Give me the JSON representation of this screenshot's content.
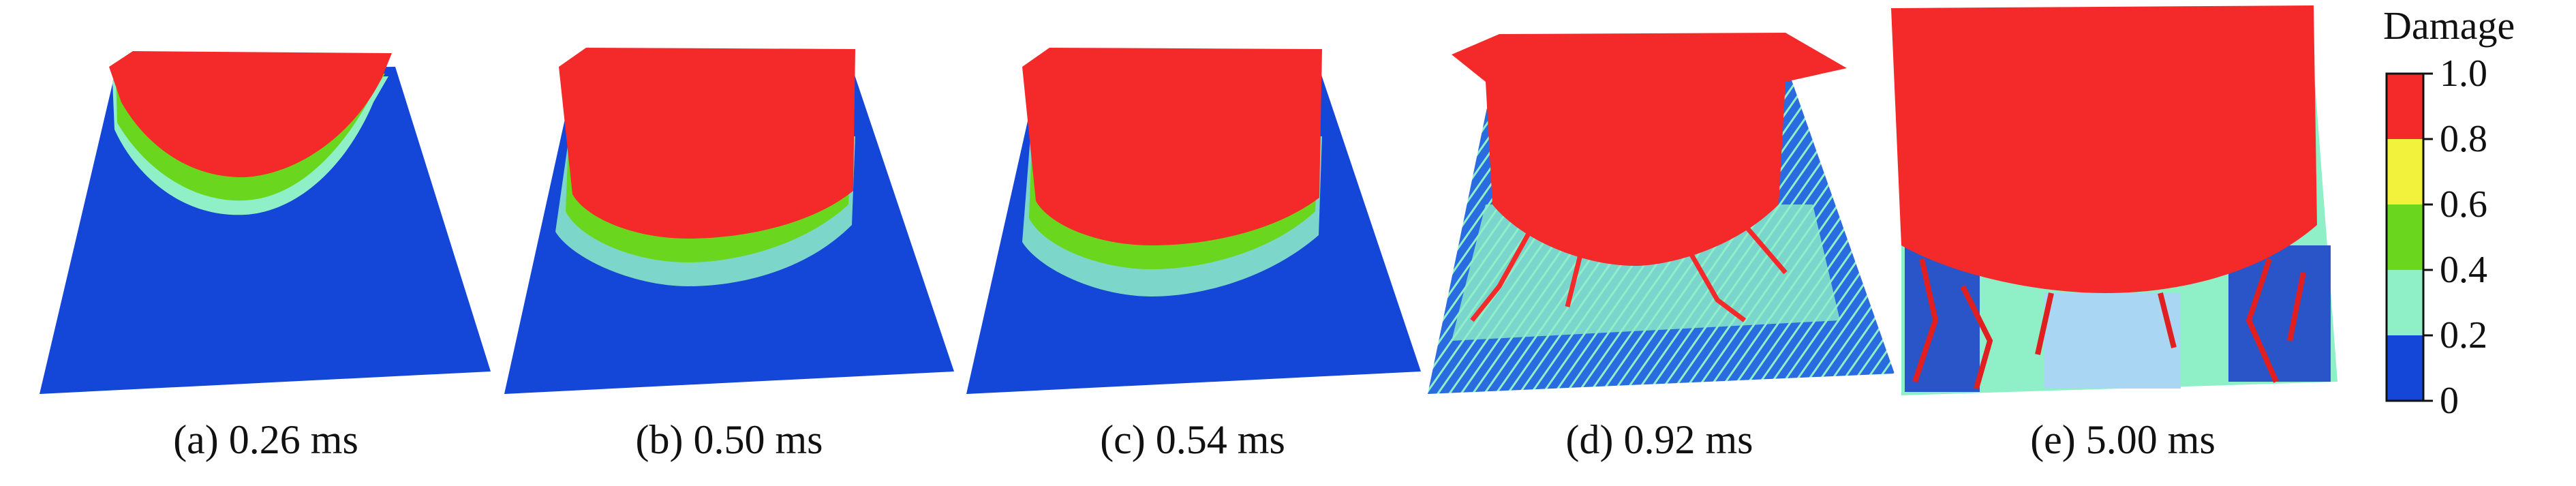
{
  "colors": {
    "intact": "#1446d8",
    "low": "#8ff0c8",
    "mid": "#6ad61e",
    "high": "#f2f23c",
    "damaged": "#f42a2a"
  },
  "panels": [
    {
      "caption": "(a) 0.26 ms"
    },
    {
      "caption": "(b) 0.50 ms"
    },
    {
      "caption": "(c) 0.54 ms"
    },
    {
      "caption": "(d) 0.92 ms"
    },
    {
      "caption": "(e) 5.00 ms"
    }
  ],
  "colorbar": {
    "title": "Damage",
    "ticks": [
      "1.0",
      "0.8",
      "0.6",
      "0.4",
      "0.2",
      "0"
    ],
    "bands": [
      {
        "from": 0.8,
        "to": 1.0,
        "color": "#f42a2a"
      },
      {
        "from": 0.6,
        "to": 0.8,
        "color": "#f2f23c"
      },
      {
        "from": 0.4,
        "to": 0.6,
        "color": "#6ad61e"
      },
      {
        "from": 0.2,
        "to": 0.4,
        "color": "#8ff0c8"
      },
      {
        "from": 0.0,
        "to": 0.2,
        "color": "#1446d8"
      }
    ]
  }
}
